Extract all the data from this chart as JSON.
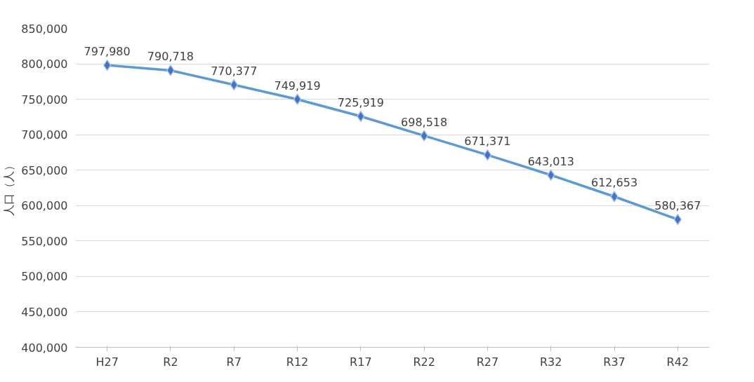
{
  "chart_data": {
    "type": "line",
    "ylabel": "人口（人）",
    "categories": [
      "H27",
      "R2",
      "R7",
      "R12",
      "R17",
      "R22",
      "R27",
      "R32",
      "R37",
      "R42"
    ],
    "series": [
      {
        "color": "#5b9bd5",
        "values": [
          797980,
          790718,
          770377,
          749919,
          725919,
          698518,
          671371,
          643013,
          612653,
          580367
        ],
        "value_labels": [
          "797,980",
          "790,718",
          "770,377",
          "749,919",
          "725,919",
          "698,518",
          "671,371",
          "643,013",
          "612,653",
          "580,367"
        ]
      }
    ],
    "marker": "diamond",
    "grid": "y",
    "ylim": [
      400000,
      850000
    ],
    "yticks": [
      {
        "value": 400000,
        "label": "400,000"
      },
      {
        "value": 450000,
        "label": "450,000"
      },
      {
        "value": 500000,
        "label": "500,000"
      },
      {
        "value": 550000,
        "label": "550,000"
      },
      {
        "value": 600000,
        "label": "600,000"
      },
      {
        "value": 650000,
        "label": "650,000"
      },
      {
        "value": 700000,
        "label": "700,000"
      },
      {
        "value": 750000,
        "label": "750,000"
      },
      {
        "value": 800000,
        "label": "800,000"
      },
      {
        "value": 850000,
        "label": "850,000"
      }
    ]
  }
}
